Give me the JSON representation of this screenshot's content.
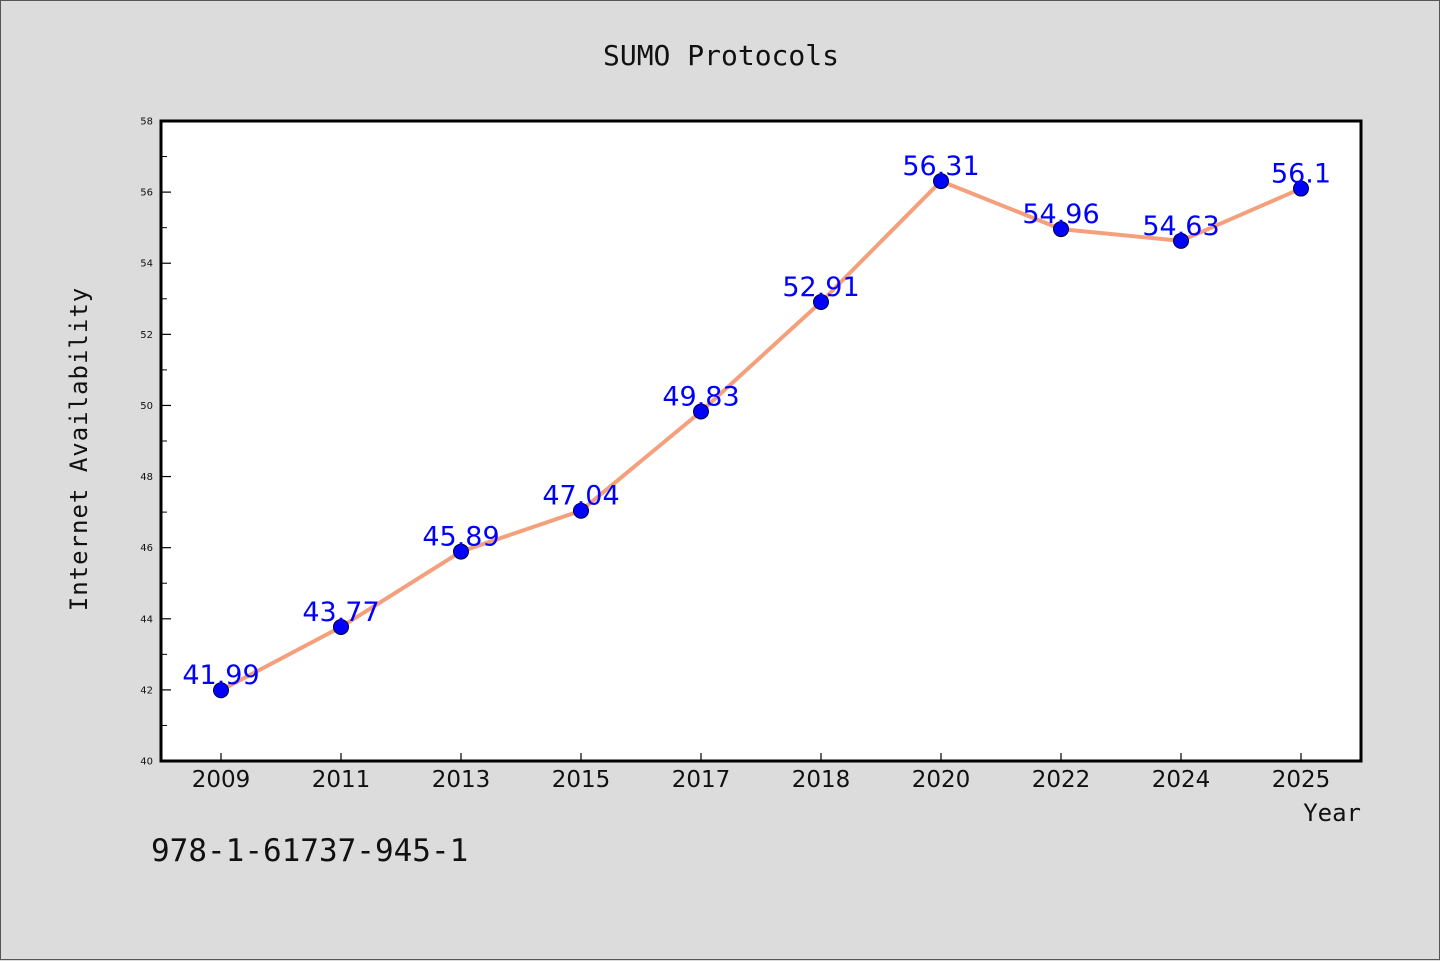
{
  "chart_data": {
    "type": "line",
    "title": "SUMO Protocols",
    "xlabel": "Year",
    "ylabel": "Internet Availability",
    "categories": [
      "2009",
      "2011",
      "2013",
      "2015",
      "2017",
      "2018",
      "2020",
      "2022",
      "2024",
      "2025"
    ],
    "series": [
      {
        "values": [
          41.99,
          43.77,
          45.89,
          47.04,
          49.83,
          52.91,
          56.31,
          54.96,
          54.63,
          56.1
        ],
        "labels": [
          "41.99",
          "43.77",
          "45.89",
          "47.04",
          "49.83",
          "52.91",
          "56.31",
          "54.96",
          "54.63",
          "56.1"
        ],
        "line_color": "#f4a07c",
        "marker_color": "#0000ff",
        "label_color": "#0000ff"
      }
    ],
    "ylim": [
      40,
      58
    ],
    "yticks": [
      "40",
      "42",
      "44",
      "46",
      "48",
      "50",
      "52",
      "54",
      "56",
      "58"
    ],
    "grid": false,
    "legend": "none"
  },
  "annotation": "978-1-61737-945-1",
  "colors": {
    "background": "#dcdcdc",
    "plot_background": "#ffffff",
    "axis": "#000000"
  }
}
